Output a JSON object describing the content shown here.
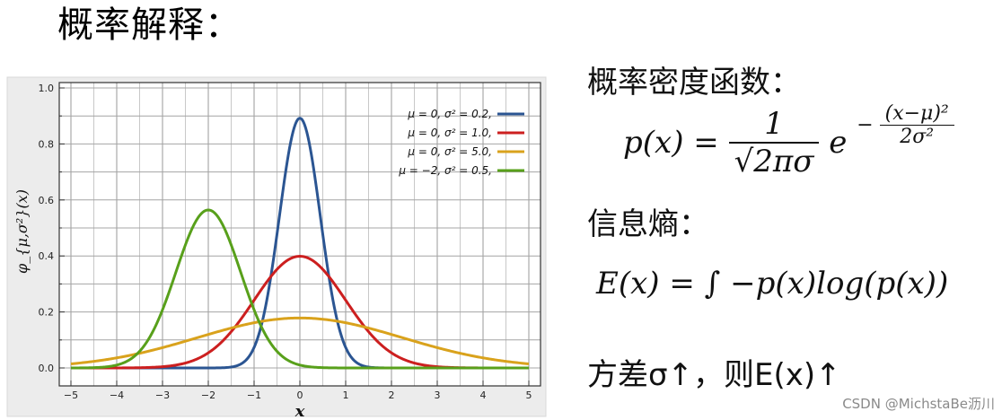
{
  "page": {
    "title": "概率解释："
  },
  "chart_data": {
    "type": "line",
    "xlabel": "x",
    "ylabel": "φ_{μ,σ²}(x)",
    "xlim": [
      -5,
      5
    ],
    "ylim": [
      0,
      1.0
    ],
    "xticks": [
      "−5",
      "−4",
      "−3",
      "−2",
      "−1",
      "0",
      "1",
      "2",
      "3",
      "4",
      "5"
    ],
    "yticks": [
      "0.0",
      "0.2",
      "0.4",
      "0.6",
      "0.8",
      "1.0"
    ],
    "grid": true,
    "legend_position": "top-right",
    "series": [
      {
        "name": "μ = 0,    σ² = 0.2,",
        "mu": 0,
        "sigma2": 0.2,
        "color": "#2b5592"
      },
      {
        "name": "μ = 0,    σ² = 1.0,",
        "mu": 0,
        "sigma2": 1.0,
        "color": "#cc1f1f"
      },
      {
        "name": "μ = 0,    σ² = 5.0,",
        "mu": 0,
        "sigma2": 5.0,
        "color": "#d9a21c"
      },
      {
        "name": "μ = −2,  σ² = 0.5,",
        "mu": -2,
        "sigma2": 0.5,
        "color": "#58a01b"
      }
    ]
  },
  "formulas": {
    "density_label": "概率密度函数：",
    "density_lhs": "p(x) =",
    "density_num": "1",
    "density_den": "√2πσ",
    "density_e": "e",
    "density_exp_sign": "−",
    "density_exp_num": "(x−μ)²",
    "density_exp_den": "2σ²",
    "entropy_label": "信息熵：",
    "entropy_formula": "E(x) = ∫ −p(x)log(p(x))",
    "variance_text": "方差σ↑，则E(x)↑"
  },
  "watermark": "CSDN @MichstaBe沥川"
}
